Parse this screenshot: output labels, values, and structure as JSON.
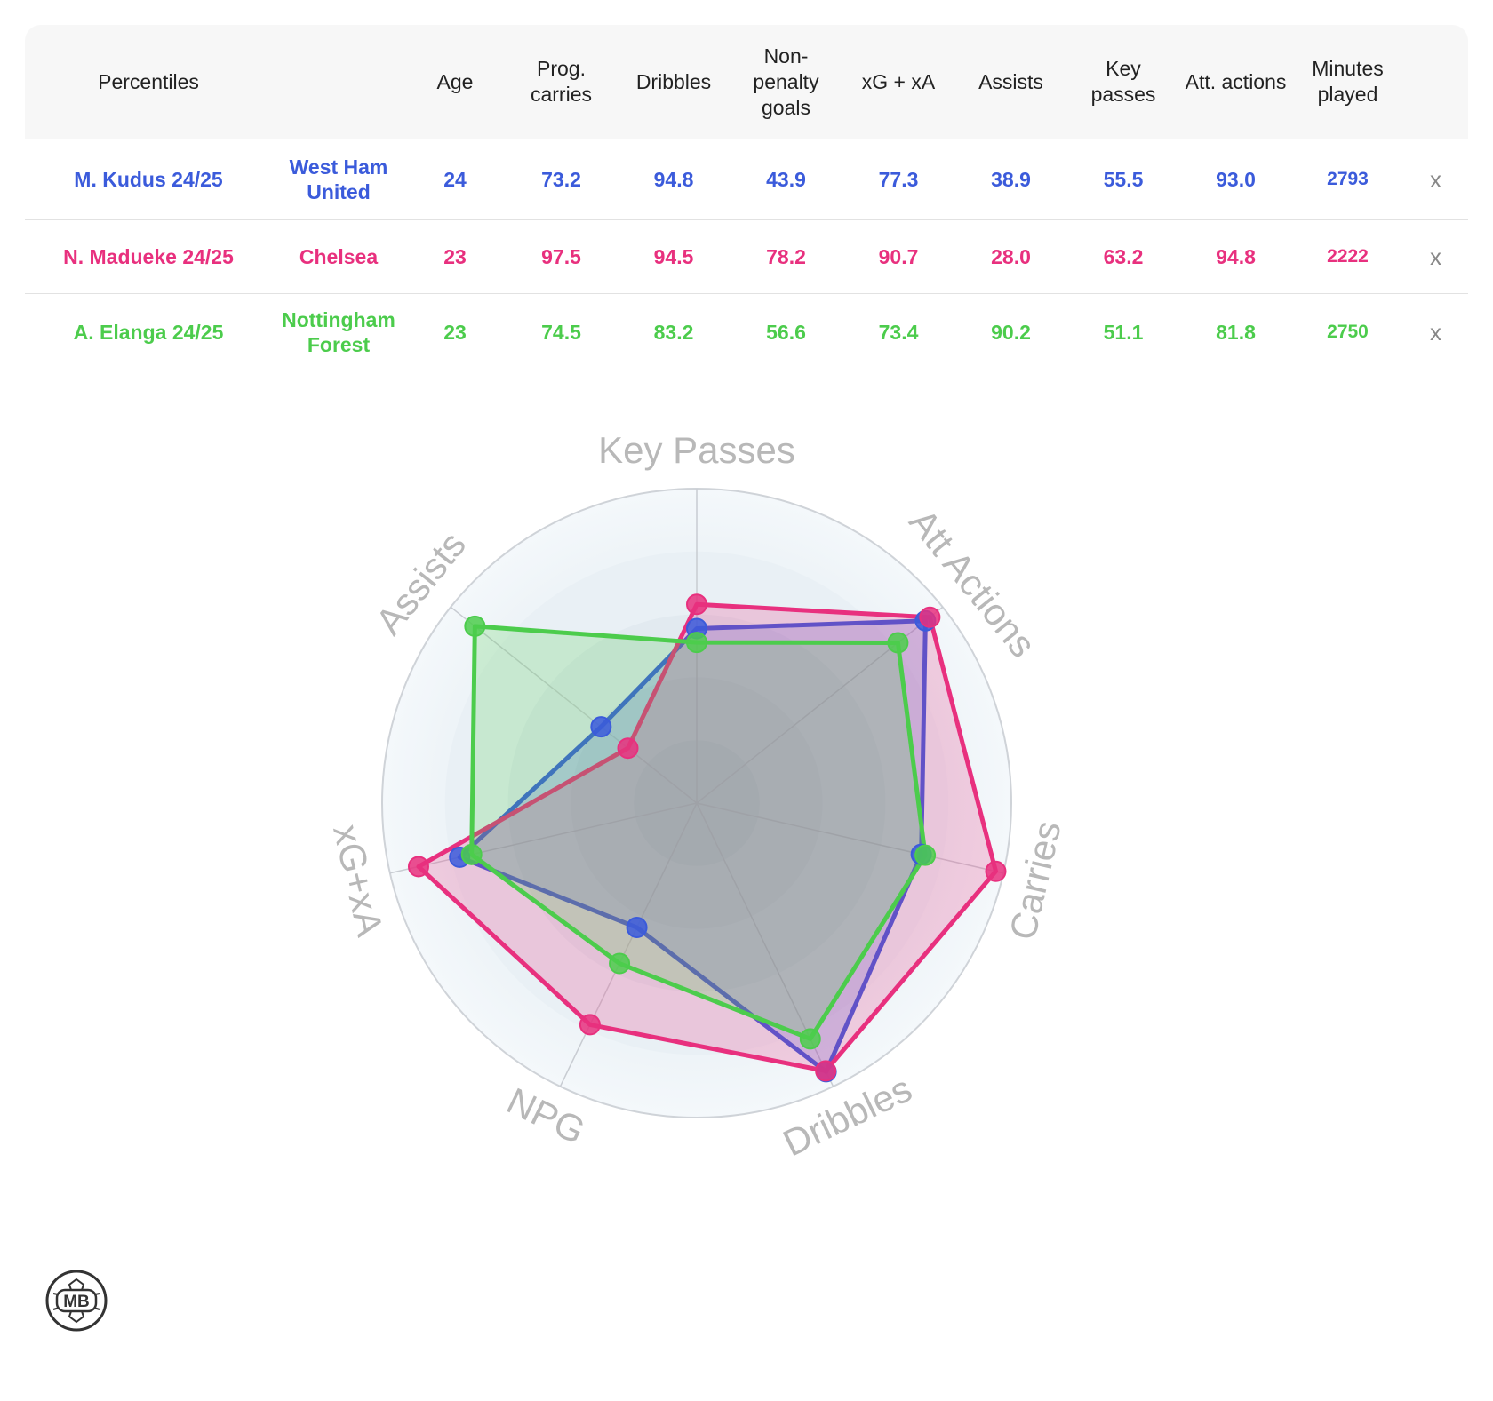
{
  "table": {
    "headers": [
      "Percentiles",
      "",
      "Age",
      "Prog. carries",
      "Dribbles",
      "Non-penalty goals",
      "xG + xA",
      "Assists",
      "Key passes",
      "Att. actions",
      "Minutes played",
      ""
    ],
    "remove_label": "x",
    "rows": [
      {
        "player": "M. Kudus 24/25",
        "team": "West Ham United",
        "age": "24",
        "prog_carries": "73.2",
        "dribbles": "94.8",
        "npg": "43.9",
        "xg_xa": "77.3",
        "assists": "38.9",
        "key_passes": "55.5",
        "att_actions": "93.0",
        "minutes": "2793",
        "color": "#3b5bdb"
      },
      {
        "player": "N. Madueke 24/25",
        "team": "Chelsea",
        "age": "23",
        "prog_carries": "97.5",
        "dribbles": "94.5",
        "npg": "78.2",
        "xg_xa": "90.7",
        "assists": "28.0",
        "key_passes": "63.2",
        "att_actions": "94.8",
        "minutes": "2222",
        "color": "#e8307e"
      },
      {
        "player": "A. Elanga 24/25",
        "team": "Nottingham Forest",
        "age": "23",
        "prog_carries": "74.5",
        "dribbles": "83.2",
        "npg": "56.6",
        "xg_xa": "73.4",
        "assists": "90.2",
        "key_passes": "51.1",
        "att_actions": "81.8",
        "minutes": "2750",
        "color": "#4ccc4c"
      }
    ]
  },
  "chart_data": {
    "type": "radar",
    "axes": [
      "Key Passes",
      "Att Actions",
      "Carries",
      "Dribbles",
      "NPG",
      "xG+xA",
      "Assists"
    ],
    "rlim": [
      0,
      100
    ],
    "series": [
      {
        "name": "M. Kudus 24/25",
        "values": [
          55.5,
          93.0,
          73.2,
          94.8,
          43.9,
          77.3,
          38.9
        ],
        "color": "#3b5bdb"
      },
      {
        "name": "N. Madueke 24/25",
        "values": [
          63.2,
          94.8,
          97.5,
          94.5,
          78.2,
          90.7,
          28.0
        ],
        "color": "#e8307e"
      },
      {
        "name": "A. Elanga 24/25",
        "values": [
          51.1,
          81.8,
          74.5,
          83.2,
          56.6,
          73.4,
          90.2
        ],
        "color": "#4ccc4c"
      }
    ]
  },
  "logo": {
    "text": "MB"
  }
}
